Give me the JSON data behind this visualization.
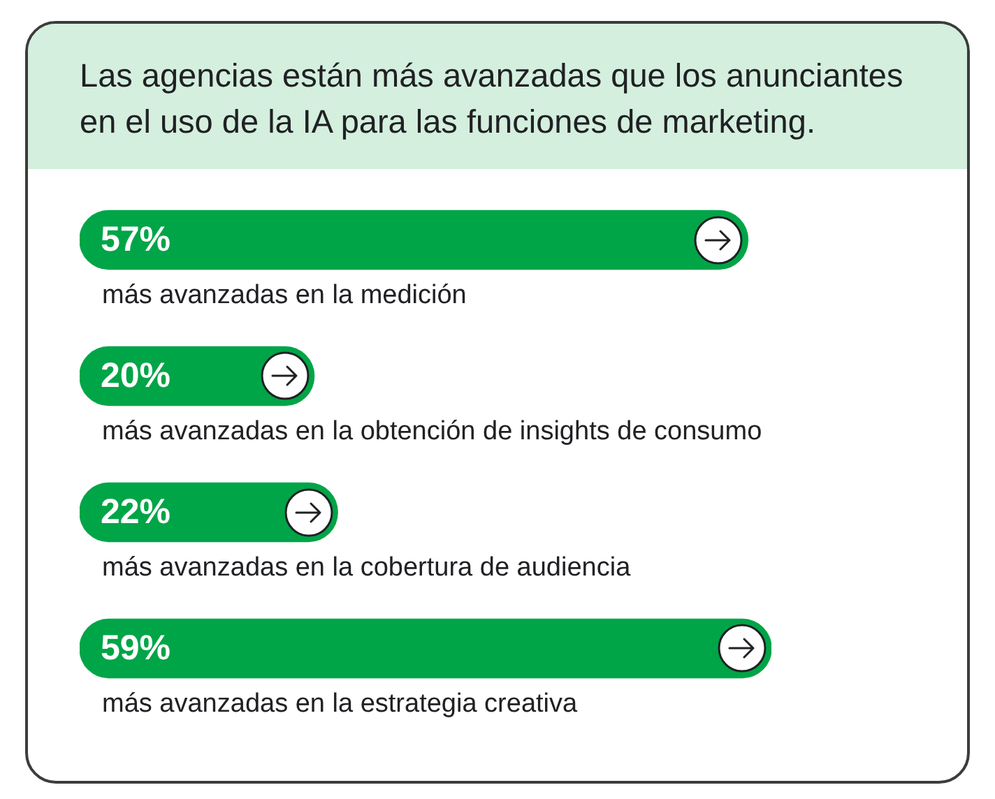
{
  "chart_data": {
    "type": "bar",
    "orientation": "horizontal",
    "tick_labels": "y",
    "title": "Las agencias están más avanzadas que los anunciantes en el uso de la IA para las funciones de marketing.",
    "categories": [
      "más avanzadas en la medición",
      "más avanzadas en la obtención de insights de consumo",
      "más avanzadas en la cobertura de audiencia",
      "más avanzadas en la estrategia creativa"
    ],
    "values": [
      57,
      20,
      22,
      59
    ],
    "color": "#00a547",
    "value_labels": [
      "57%",
      "20%",
      "22%",
      "59%"
    ]
  }
}
